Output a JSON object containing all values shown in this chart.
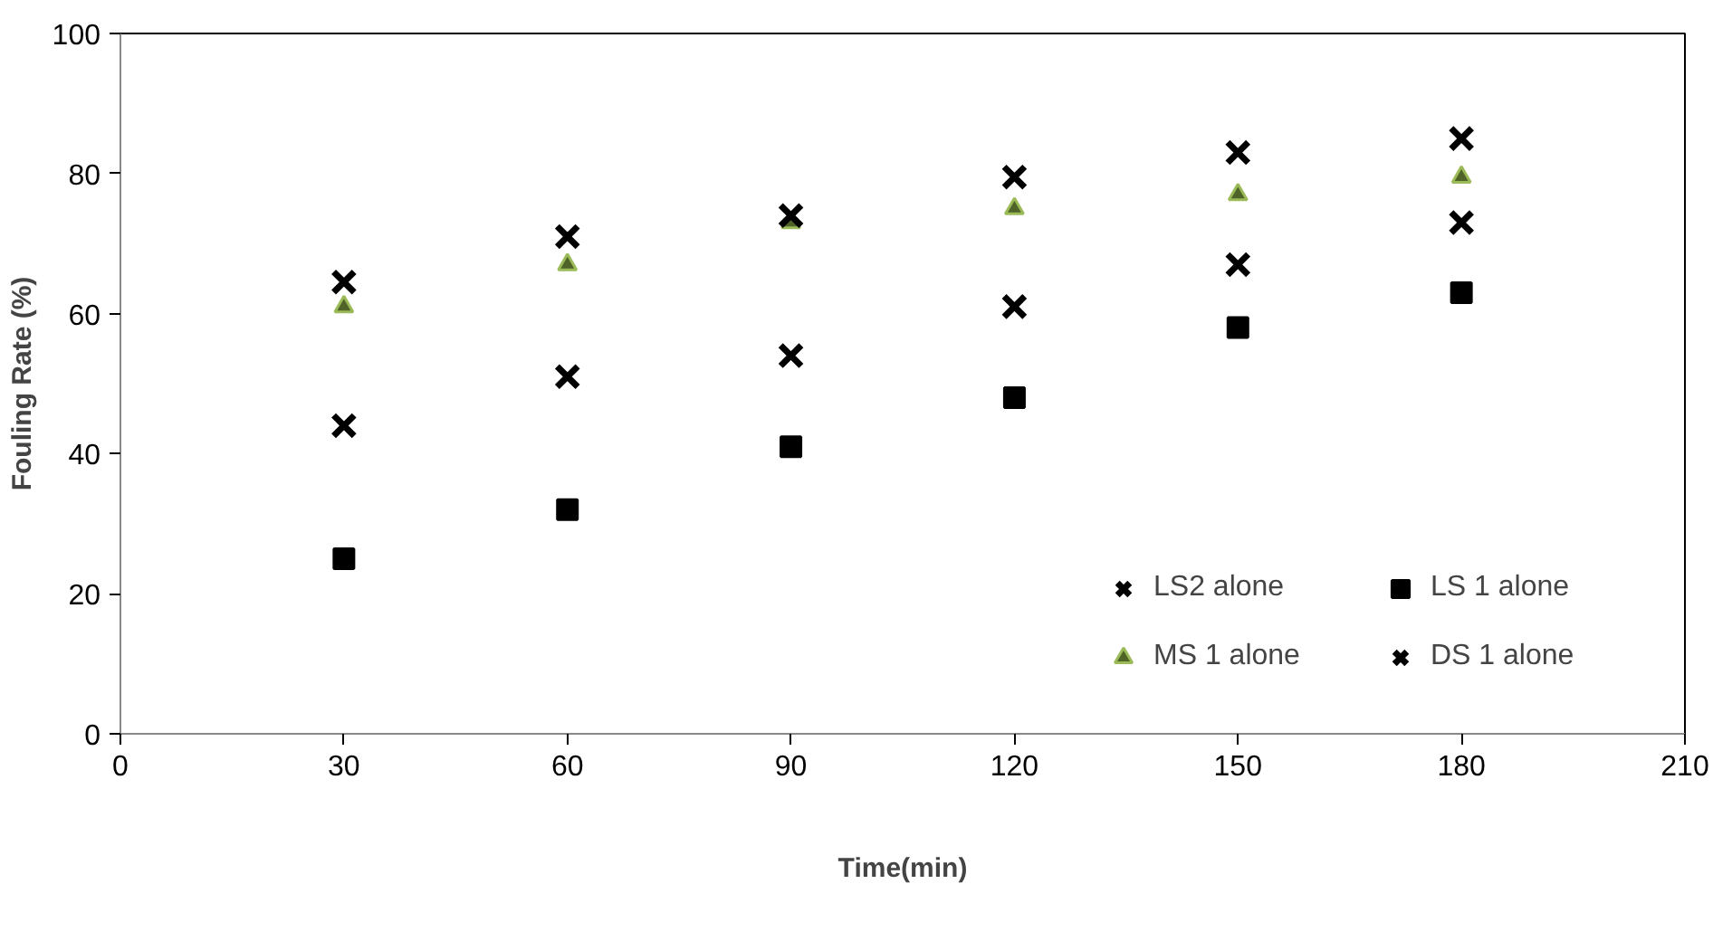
{
  "chart_data": {
    "type": "scatter",
    "xlabel": "Time(min)",
    "ylabel": "Fouling Rate (%)",
    "x": [
      30,
      60,
      90,
      120,
      150,
      180
    ],
    "series": [
      {
        "name": "LS2 alone",
        "color": "#000000",
        "marker": "cross",
        "values": [
          44,
          51,
          54,
          61,
          67,
          73
        ]
      },
      {
        "name": "LS 1 alone",
        "color": "#000000",
        "marker": "square",
        "values": [
          25,
          32,
          41,
          48,
          58,
          63
        ]
      },
      {
        "name": "MS 1 alone",
        "color": "#4f6228",
        "marker": "triangle",
        "values": [
          61,
          67,
          73,
          75,
          77,
          79.5
        ]
      },
      {
        "name": "DS 1 alone",
        "color": "#000000",
        "marker": "cross",
        "values": [
          64.5,
          71,
          74,
          79.5,
          83,
          85
        ]
      }
    ],
    "xlim": [
      0,
      210
    ],
    "xticks": [
      0,
      30,
      60,
      90,
      120,
      150,
      180,
      210
    ],
    "ylim": [
      0,
      100
    ],
    "yticks": [
      0,
      20,
      40,
      60,
      80,
      100
    ],
    "grid": false,
    "legend": "bottom right"
  }
}
